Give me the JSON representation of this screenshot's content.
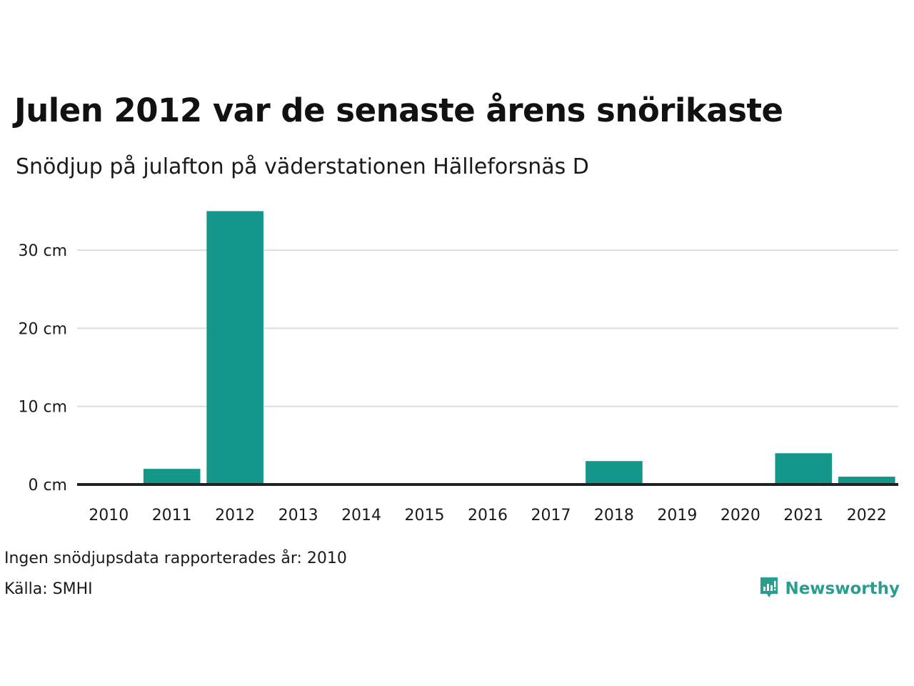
{
  "title": "Julen 2012 var de senaste årens snörikaste",
  "subtitle": "Snödjup på julafton på väderstationen Hälleforsnäs D",
  "chart_data": {
    "type": "bar",
    "categories": [
      "2010",
      "2011",
      "2012",
      "2013",
      "2014",
      "2015",
      "2016",
      "2017",
      "2018",
      "2019",
      "2020",
      "2021",
      "2022"
    ],
    "values": [
      null,
      2,
      35,
      0,
      0,
      0,
      0,
      0,
      3,
      0,
      0,
      4,
      1
    ],
    "yticks": [
      0,
      10,
      20,
      30
    ],
    "ytick_labels": [
      "0 cm",
      "10 cm",
      "20 cm",
      "30 cm"
    ],
    "ylim": [
      0,
      35
    ],
    "bar_color": "#14968a",
    "grid": true,
    "title": "Julen 2012 var de senaste årens snörikaste",
    "subtitle": "Snödjup på julafton på väderstationen Hälleforsnäs D"
  },
  "footer": {
    "note": "Ingen snödjupsdata rapporterades år: 2010",
    "source": "Källa: SMHI"
  },
  "brand": {
    "name": "Newsworthy",
    "icon": "newsworthy-logo-icon",
    "color": "#2a9d8f"
  }
}
